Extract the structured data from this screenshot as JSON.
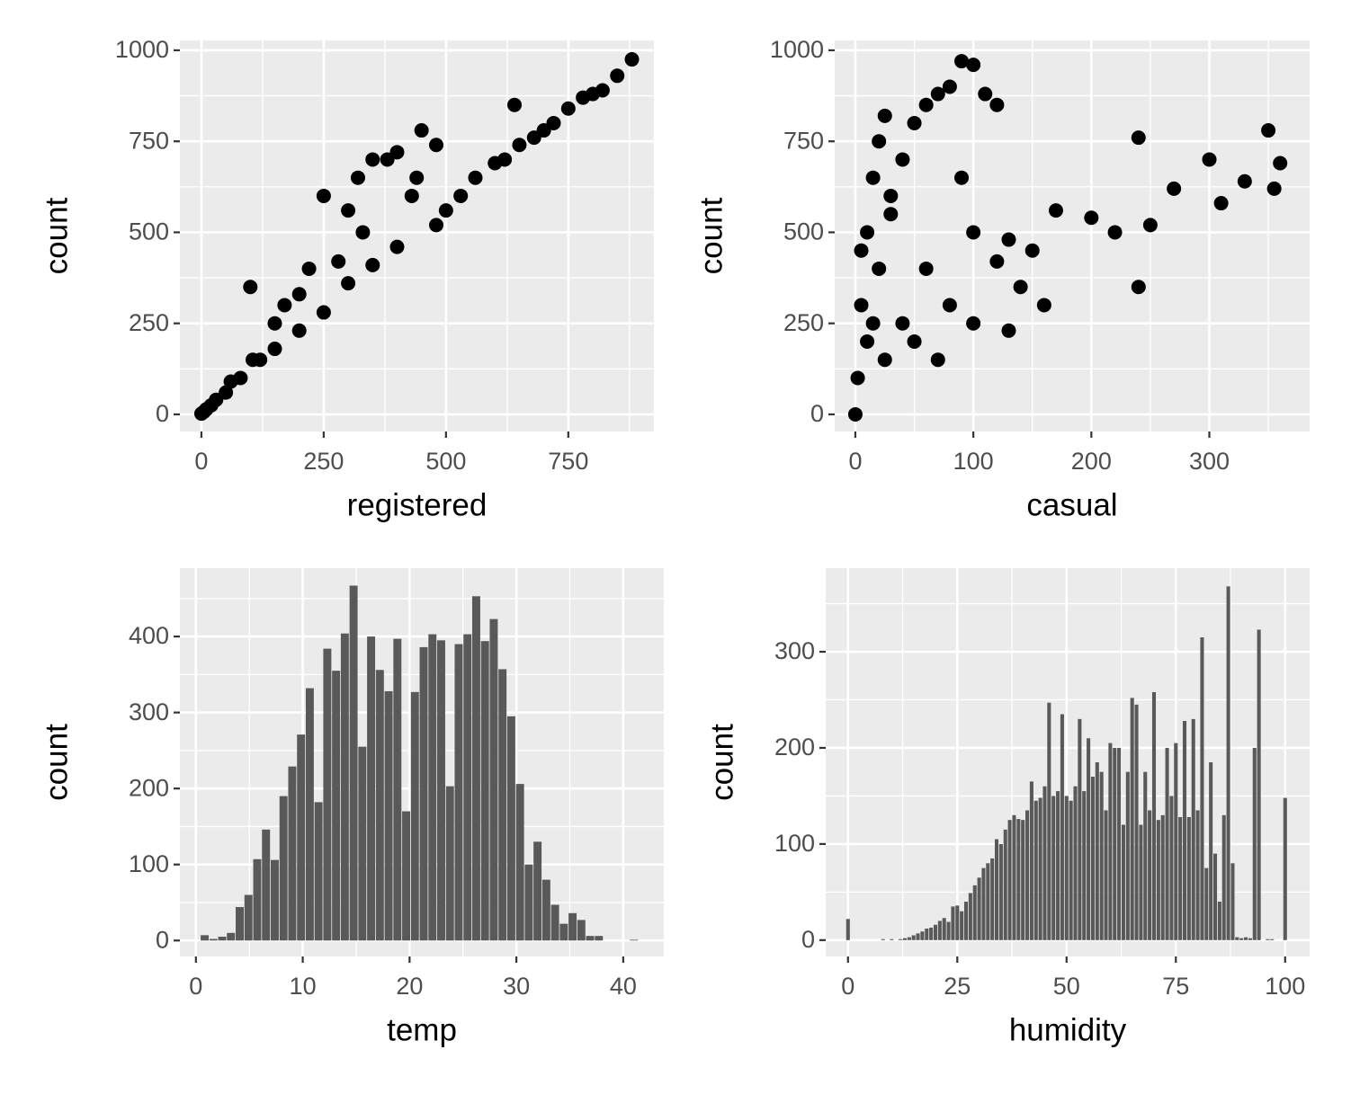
{
  "chart_data": [
    {
      "type": "scatter",
      "x_label": "registered",
      "y_label": "count",
      "color": "#000000",
      "grid": true,
      "xlim": [
        -44,
        925
      ],
      "ylim": [
        -47,
        1027
      ],
      "xticks": [
        0,
        250,
        500,
        750
      ],
      "yticks": [
        0,
        250,
        500,
        750,
        1000
      ],
      "x": [
        0,
        5,
        10,
        20,
        30,
        50,
        60,
        80,
        100,
        120,
        150,
        170,
        200,
        220,
        250,
        280,
        300,
        320,
        350,
        380,
        400,
        430,
        450,
        480,
        500,
        530,
        560,
        600,
        620,
        650,
        680,
        700,
        720,
        750,
        780,
        800,
        820,
        850,
        880,
        250,
        300,
        350,
        400,
        440,
        105,
        150,
        200,
        330,
        480,
        640
      ],
      "y": [
        2,
        7,
        14,
        25,
        40,
        60,
        90,
        100,
        350,
        150,
        180,
        300,
        230,
        400,
        280,
        420,
        360,
        650,
        410,
        700,
        460,
        600,
        780,
        520,
        560,
        600,
        650,
        690,
        700,
        740,
        760,
        780,
        800,
        840,
        870,
        880,
        890,
        930,
        975,
        600,
        560,
        700,
        720,
        650,
        150,
        250,
        330,
        500,
        740,
        850
      ]
    },
    {
      "type": "scatter",
      "x_label": "casual",
      "y_label": "count",
      "color": "#000000",
      "grid": true,
      "xlim": [
        -17.5,
        385
      ],
      "ylim": [
        -47,
        1027
      ],
      "xticks": [
        0,
        100,
        200,
        300
      ],
      "yticks": [
        0,
        250,
        500,
        750,
        1000
      ],
      "x": [
        0,
        2,
        5,
        10,
        15,
        20,
        25,
        30,
        40,
        50,
        60,
        70,
        80,
        90,
        100,
        110,
        120,
        130,
        150,
        170,
        200,
        220,
        240,
        250,
        270,
        300,
        330,
        350,
        360,
        10,
        20,
        30,
        40,
        60,
        80,
        90,
        100,
        120,
        140,
        160,
        5,
        15,
        25,
        50,
        70,
        100,
        130,
        240,
        310,
        355
      ],
      "y": [
        0,
        100,
        300,
        500,
        650,
        750,
        820,
        600,
        700,
        800,
        850,
        880,
        900,
        970,
        960,
        880,
        850,
        480,
        450,
        560,
        540,
        500,
        350,
        520,
        620,
        700,
        640,
        780,
        690,
        200,
        400,
        550,
        250,
        400,
        300,
        650,
        500,
        420,
        350,
        300,
        450,
        250,
        150,
        200,
        150,
        250,
        230,
        760,
        580,
        620
      ]
    },
    {
      "type": "histogram",
      "x_label": "temp",
      "y_label": "count",
      "color": "#595959",
      "grid": true,
      "xlim": [
        -1.5,
        43.8
      ],
      "ylim": [
        -21,
        490
      ],
      "xticks": [
        0,
        10,
        20,
        30,
        40
      ],
      "yticks": [
        0,
        100,
        200,
        300,
        400
      ],
      "bins": [
        0.41,
        1.23,
        2.05,
        2.87,
        3.69,
        4.51,
        5.33,
        6.15,
        6.97,
        7.79,
        8.61,
        9.43,
        10.25,
        11.07,
        11.89,
        12.71,
        13.53,
        14.35,
        15.17,
        15.99,
        16.81,
        17.63,
        18.45,
        19.27,
        20.09,
        20.91,
        21.73,
        22.55,
        23.37,
        24.19,
        25.01,
        25.83,
        26.65,
        27.47,
        28.29,
        29.11,
        29.93,
        30.75,
        31.57,
        32.39,
        33.21,
        34.03,
        34.85,
        35.67,
        36.49,
        37.31,
        38.13,
        38.95,
        39.77,
        40.59,
        41.41
      ],
      "values": [
        7,
        2,
        5,
        10,
        44,
        60,
        107,
        146,
        106,
        190,
        229,
        271,
        332,
        182,
        384,
        355,
        404,
        467,
        255,
        400,
        356,
        328,
        397,
        170,
        327,
        386,
        403,
        395,
        203,
        390,
        403,
        453,
        394,
        423,
        357,
        295,
        206,
        100,
        130,
        80,
        47,
        22,
        36,
        27,
        6,
        6,
        0,
        0,
        0,
        1
      ]
    },
    {
      "type": "histogram",
      "x_label": "humidity",
      "y_label": "count",
      "color": "#595959",
      "grid": true,
      "xlim": [
        -5.1,
        105.6
      ],
      "ylim": [
        -17,
        387
      ],
      "xticks": [
        0,
        25,
        50,
        75,
        100
      ],
      "yticks": [
        0,
        100,
        200,
        300
      ],
      "bins": [
        -0.5,
        0.5,
        1.5,
        2.5,
        3.5,
        4.5,
        5.5,
        6.5,
        7.5,
        8.5,
        9.5,
        10.5,
        11.5,
        12.5,
        13.5,
        14.5,
        15.5,
        16.5,
        17.5,
        18.5,
        19.5,
        20.5,
        21.5,
        22.5,
        23.5,
        24.5,
        25.5,
        26.5,
        27.5,
        28.5,
        29.5,
        30.5,
        31.5,
        32.5,
        33.5,
        34.5,
        35.5,
        36.5,
        37.5,
        38.5,
        39.5,
        40.5,
        41.5,
        42.5,
        43.5,
        44.5,
        45.5,
        46.5,
        47.5,
        48.5,
        49.5,
        50.5,
        51.5,
        52.5,
        53.5,
        54.5,
        55.5,
        56.5,
        57.5,
        58.5,
        59.5,
        60.5,
        61.5,
        62.5,
        63.5,
        64.5,
        65.5,
        66.5,
        67.5,
        68.5,
        69.5,
        70.5,
        71.5,
        72.5,
        73.5,
        74.5,
        75.5,
        76.5,
        77.5,
        78.5,
        79.5,
        80.5,
        81.5,
        82.5,
        83.5,
        84.5,
        85.5,
        86.5,
        87.5,
        88.5,
        89.5,
        90.5,
        91.5,
        92.5,
        93.5,
        94.5,
        95.5,
        96.5,
        97.5,
        98.5,
        99.5,
        100.5
      ],
      "values": [
        22,
        0,
        0,
        0,
        0,
        0,
        0,
        0,
        1,
        0,
        1,
        0,
        1,
        2,
        3,
        5,
        7,
        9,
        12,
        13,
        16,
        20,
        23,
        19,
        35,
        36,
        30,
        40,
        49,
        57,
        65,
        75,
        80,
        85,
        105,
        100,
        115,
        125,
        130,
        126,
        125,
        135,
        165,
        145,
        148,
        160,
        247,
        150,
        155,
        235,
        150,
        145,
        160,
        230,
        155,
        210,
        170,
        185,
        175,
        135,
        205,
        200,
        200,
        120,
        175,
        252,
        245,
        120,
        175,
        135,
        258,
        125,
        130,
        200,
        150,
        205,
        128,
        228,
        128,
        230,
        135,
        315,
        75,
        185,
        90,
        40,
        130,
        368,
        80,
        3,
        2,
        3,
        2,
        200,
        323,
        0,
        1,
        1,
        0,
        0,
        148
      ]
    }
  ]
}
